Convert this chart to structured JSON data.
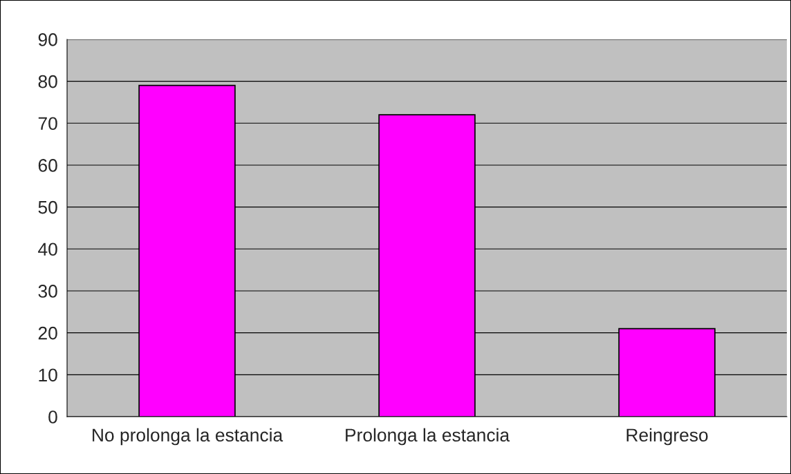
{
  "chart_data": {
    "type": "bar",
    "categories": [
      "No prolonga la estancia",
      "Prolonga la estancia",
      "Reingreso"
    ],
    "values": [
      79,
      72,
      21
    ],
    "color": "#ff00ff",
    "ylim": [
      0,
      90
    ],
    "yticks": [
      0,
      10,
      20,
      30,
      40,
      50,
      60,
      70,
      80,
      90
    ],
    "grid": "y"
  }
}
